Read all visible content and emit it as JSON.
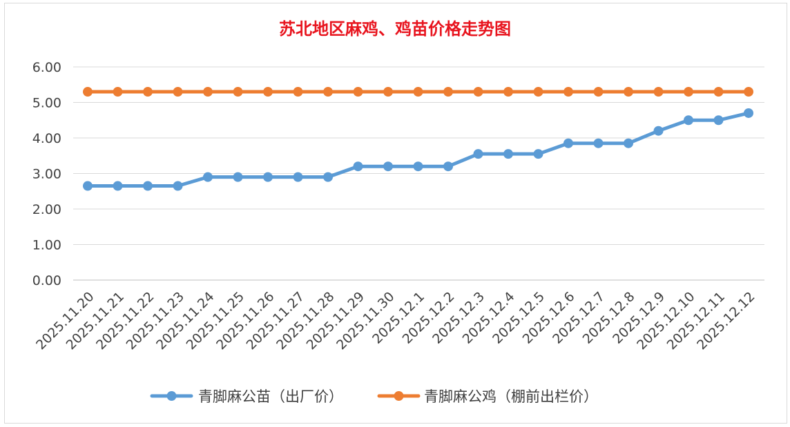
{
  "chart_data": {
    "type": "line",
    "title": "苏北地区麻鸡、鸡苗价格走势图",
    "categories": [
      "2025.11.20",
      "2025.11.21",
      "2025.11.22",
      "2025.11.23",
      "2025.11.24",
      "2025.11.25",
      "2025.11.26",
      "2025.11.27",
      "2025.11.28",
      "2025.11.29",
      "2025.11.30",
      "2025.12.1",
      "2025.12.2",
      "2025.12.3",
      "2025.12.4",
      "2025.12.5",
      "2025.12.6",
      "2025.12.7",
      "2025.12.8",
      "2025.12.9",
      "2025.12.10",
      "2025.12.11",
      "2025.12.12"
    ],
    "series": [
      {
        "name": "青脚麻公苗（出厂价）",
        "color": "#5b9bd5",
        "values": [
          2.65,
          2.65,
          2.65,
          2.65,
          2.9,
          2.9,
          2.9,
          2.9,
          2.9,
          3.2,
          3.2,
          3.2,
          3.2,
          3.55,
          3.55,
          3.55,
          3.85,
          3.85,
          3.85,
          4.2,
          4.5,
          4.5,
          4.7
        ]
      },
      {
        "name": "青脚麻公鸡（棚前出栏价）",
        "color": "#ed7d31",
        "values": [
          5.3,
          5.3,
          5.3,
          5.3,
          5.3,
          5.3,
          5.3,
          5.3,
          5.3,
          5.3,
          5.3,
          5.3,
          5.3,
          5.3,
          5.3,
          5.3,
          5.3,
          5.3,
          5.3,
          5.3,
          5.3,
          5.3,
          5.3
        ]
      }
    ],
    "ylim": [
      0,
      6
    ],
    "yticks": [
      "0.00",
      "1.00",
      "2.00",
      "3.00",
      "4.00",
      "5.00",
      "6.00"
    ],
    "ytick_values": [
      0,
      1,
      2,
      3,
      4,
      5,
      6
    ],
    "grid": true,
    "legend_position": "bottom"
  }
}
